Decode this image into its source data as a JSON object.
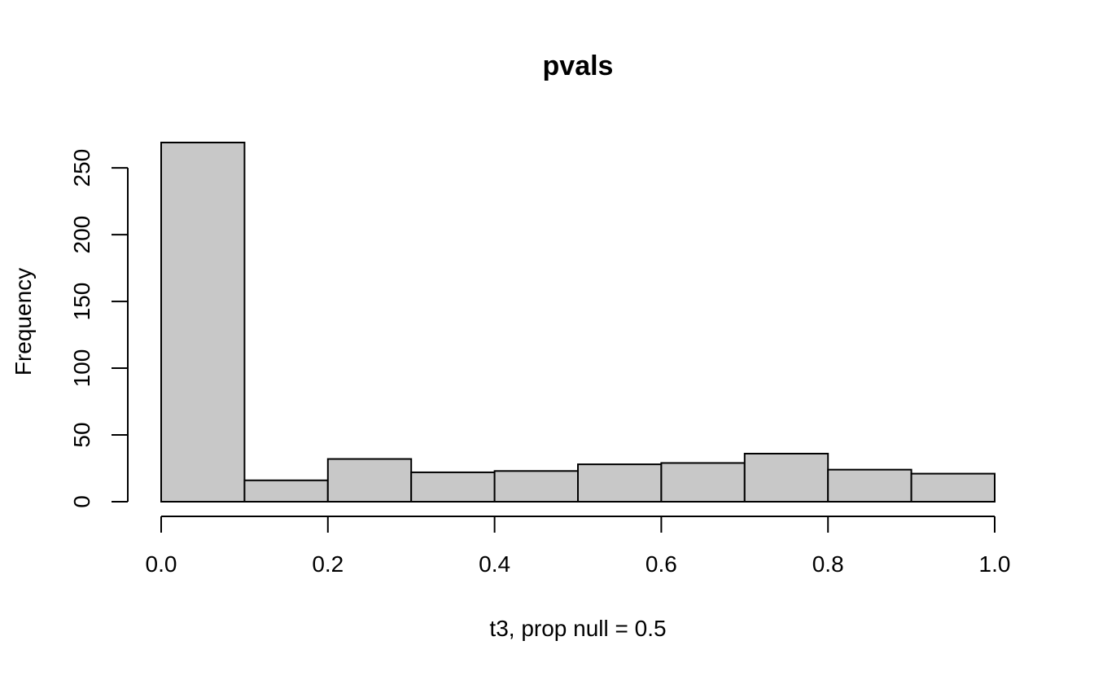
{
  "chart_data": {
    "type": "bar",
    "title": "pvals",
    "xlabel": "t3, prop null = 0.5",
    "ylabel": "Frequency",
    "bins": [
      {
        "from": 0.0,
        "to": 0.1,
        "count": 269
      },
      {
        "from": 0.1,
        "to": 0.2,
        "count": 16
      },
      {
        "from": 0.2,
        "to": 0.3,
        "count": 32
      },
      {
        "from": 0.3,
        "to": 0.4,
        "count": 22
      },
      {
        "from": 0.4,
        "to": 0.5,
        "count": 23
      },
      {
        "from": 0.5,
        "to": 0.6,
        "count": 28
      },
      {
        "from": 0.6,
        "to": 0.7,
        "count": 29
      },
      {
        "from": 0.7,
        "to": 0.8,
        "count": 36
      },
      {
        "from": 0.8,
        "to": 0.9,
        "count": 24
      },
      {
        "from": 0.9,
        "to": 1.0,
        "count": 21
      }
    ],
    "xlim": [
      0,
      1
    ],
    "ylim": [
      0,
      269
    ],
    "x_ticks": [
      0.0,
      0.2,
      0.4,
      0.6,
      0.8,
      1.0
    ],
    "x_tick_labels": [
      "0.0",
      "0.2",
      "0.4",
      "0.6",
      "0.8",
      "1.0"
    ],
    "y_ticks": [
      0,
      50,
      100,
      150,
      200,
      250
    ],
    "y_tick_labels": [
      "0",
      "50",
      "100",
      "150",
      "200",
      "250"
    ],
    "grid": false,
    "bar_fill": "#c8c8c8",
    "bar_stroke": "#000000"
  }
}
